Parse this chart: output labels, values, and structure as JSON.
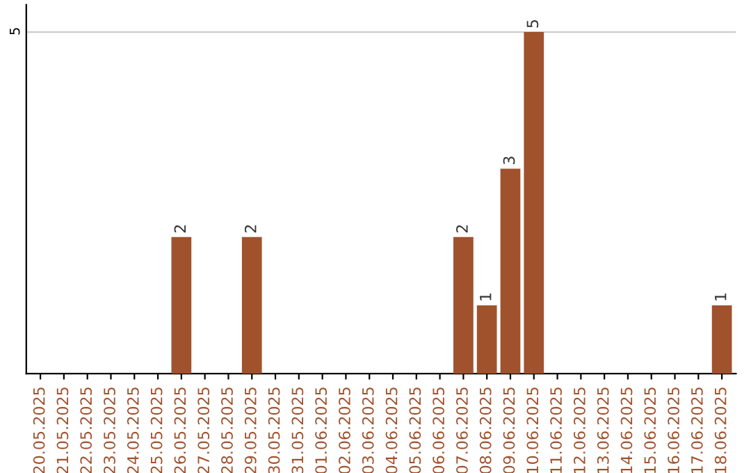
{
  "chart_data": {
    "type": "bar",
    "categories": [
      "20.05.2025",
      "21.05.2025",
      "22.05.2025",
      "23.05.2025",
      "24.05.2025",
      "25.05.2025",
      "26.05.2025",
      "27.05.2025",
      "28.05.2025",
      "29.05.2025",
      "30.05.2025",
      "31.05.2025",
      "01.06.2025",
      "02.06.2025",
      "03.06.2025",
      "04.06.2025",
      "05.06.2025",
      "06.06.2025",
      "07.06.2025",
      "08.06.2025",
      "09.06.2025",
      "10.06.2025",
      "11.06.2025",
      "12.06.2025",
      "13.06.2025",
      "14.06.2025",
      "15.06.2025",
      "16.06.2025",
      "17.06.2025",
      "18.06.2025"
    ],
    "values": [
      0,
      0,
      0,
      0,
      0,
      0,
      2,
      0,
      0,
      2,
      0,
      0,
      0,
      0,
      0,
      0,
      0,
      0,
      2,
      1,
      3,
      5,
      0,
      0,
      0,
      0,
      0,
      0,
      0,
      1
    ],
    "value_labels": [
      null,
      null,
      null,
      null,
      null,
      null,
      "2",
      null,
      null,
      "2",
      null,
      null,
      null,
      null,
      null,
      null,
      null,
      null,
      "2",
      "1",
      "3",
      "5",
      null,
      null,
      null,
      null,
      null,
      null,
      null,
      "1"
    ],
    "color": "#a0522d",
    "ylim": [
      0,
      5.4
    ],
    "yticks": [
      5
    ],
    "grid": "y"
  }
}
